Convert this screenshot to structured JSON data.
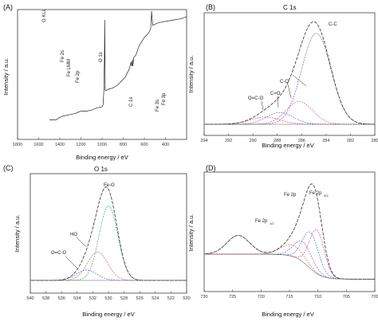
{
  "chart_data": [
    {
      "type": "line",
      "panel": "(A)",
      "title": "",
      "xlabel": "Binding energy / eV",
      "ylabel": "Intensity / a.u.",
      "xlim": [
        1800,
        200
      ],
      "x_ticks": [
        400,
        600,
        800,
        1000,
        1200,
        1400,
        1600,
        1800
      ],
      "series": [
        {
          "x": [
            200,
            260,
            320,
            380,
            440,
            480,
            500,
            520,
            528,
            531,
            534,
            540,
            560,
            600,
            640,
            660,
            680,
            700,
            710,
            712,
            715,
            720,
            725,
            740,
            760,
            780,
            800,
            850,
            900,
            940,
            960,
            970,
            973,
            975,
            978,
            982,
            990,
            1000,
            1050,
            1100,
            1150,
            1200,
            1230,
            1250,
            1300,
            1350,
            1390,
            1400,
            1410,
            1420,
            1440,
            1480,
            1500
          ],
          "values": [
            95,
            93,
            92,
            91,
            90,
            89,
            88,
            87,
            95,
            100,
            93,
            84,
            80,
            76,
            70,
            66,
            60,
            58,
            50,
            56,
            52,
            50,
            54,
            48,
            44,
            40,
            38,
            33,
            30,
            29,
            28,
            28,
            60,
            92,
            55,
            30,
            15,
            13,
            12,
            10,
            9,
            9,
            8,
            7,
            6,
            5,
            4,
            3,
            3,
            2,
            1,
            1,
            1
          ]
        }
      ],
      "annotations": [
        "O KLL",
        "Fe 2s",
        "Fe LMM",
        "Fe 2p",
        "O 1s",
        "C 1s",
        "Fe 3s",
        "Fe 3p"
      ]
    },
    {
      "type": "line",
      "panel": "(B)",
      "title": "C 1s",
      "xlabel": "Binding energy / eV",
      "ylabel": "Intensity / a.u.",
      "xlim": [
        294,
        280
      ],
      "x_ticks": [
        294,
        292,
        290,
        288,
        286,
        284,
        282,
        280
      ],
      "annotations": [
        "O=C-O",
        "C=O",
        "C-O",
        "C-C"
      ],
      "peaks": [
        {
          "name": "C-C",
          "center": 284.8,
          "height": 100,
          "width": 1.2
        },
        {
          "name": "C-O",
          "center": 286.2,
          "height": 25,
          "width": 1.1
        },
        {
          "name": "C=O",
          "center": 287.8,
          "height": 13,
          "width": 1.1
        },
        {
          "name": "O=C-O",
          "center": 289.0,
          "height": 8,
          "width": 1.2
        }
      ]
    },
    {
      "type": "line",
      "panel": "(C)",
      "title": "O 1s",
      "xlabel": "Binding energy / eV",
      "ylabel": "Intensity / a.u.",
      "xlim": [
        540,
        520
      ],
      "x_ticks": [
        540,
        538,
        536,
        534,
        532,
        530,
        528,
        526,
        524,
        522,
        520
      ],
      "annotations": [
        "O=C-O",
        "HO",
        "Fe-O"
      ],
      "peaks": [
        {
          "name": "Fe-O",
          "center": 530.0,
          "height": 100,
          "width": 1.2
        },
        {
          "name": "HO",
          "center": 531.4,
          "height": 38,
          "width": 1.3
        },
        {
          "name": "O=C-O",
          "center": 532.8,
          "height": 14,
          "width": 1.3
        }
      ]
    },
    {
      "type": "line",
      "panel": "(D)",
      "title": "",
      "xlabel": "Binding energy / eV",
      "ylabel": "Intensity / a.u.",
      "xlim": [
        730,
        700
      ],
      "x_ticks": [
        730,
        725,
        720,
        715,
        710,
        705,
        700
      ],
      "annotations": [
        "Fe 2p",
        "Fe 2p",
        "3/2",
        "Fe 2p",
        "1/2"
      ],
      "peaks": [
        {
          "name": "Fe 2p3/2 a",
          "center": 710.2,
          "height": 70,
          "width": 1.3
        },
        {
          "name": "Fe 2p3/2 b",
          "center": 711.3,
          "height": 58,
          "width": 1.4
        },
        {
          "name": "Fe 2p3/2 c",
          "center": 712.6,
          "height": 32,
          "width": 1.6
        },
        {
          "name": "Fe 2p3/2 d",
          "center": 714.5,
          "height": 18,
          "width": 2.0
        },
        {
          "name": "Fe 2p1/2",
          "center": 724.0,
          "height": 30,
          "width": 2.0
        }
      ],
      "background": {
        "high": 42,
        "low": 2
      }
    }
  ],
  "labels": {
    "a_letter": "(A)",
    "b_letter": "(B)",
    "c_letter": "(C)",
    "d_letter": "(D)",
    "a_xlabel": "Binding energy / eV",
    "a_ylabel": "Intensity / a.u.",
    "b_title": "C 1s",
    "b_xlabel": "Binding energy / eV",
    "b_ylabel": "Intensity / a.u.",
    "c_title": "O 1s",
    "c_xlabel": "Binding energy / eV",
    "c_ylabel": "Intensity / a.u.",
    "d_xlabel": "Binding energy / eV",
    "d_ylabel": "Intensity / a.u.",
    "a_ann": {
      "okll": "O KLL",
      "fe2s": "Fe 2s",
      "felmm": "Fe LMM",
      "fe2p": "Fe 2p",
      "o1s": "O 1s",
      "c1s": "C 1s",
      "fe3s": "Fe 3s",
      "fe3p": "Fe 3p"
    },
    "b_ann": {
      "oco": "O=C-O",
      "co_double": "C=O",
      "co": "C-O",
      "cc": "C-C"
    },
    "c_ann": {
      "oco": "O=C-O",
      "ho": "HO",
      "feo": "Fe-O"
    },
    "d_ann": {
      "fe2p": "Fe 2p",
      "fe2p32": "Fe 2p",
      "sub32": "3/2",
      "fe2p12": "Fe 2p",
      "sub12": "1/2"
    }
  },
  "colors": {
    "envelope": "#222222",
    "c_cc": "#7a3fa0",
    "c_co": "#d33a8a",
    "c_cod": "#3a5fc8",
    "c_oco": "#c83a3a",
    "o_feo": "#1e9e5a",
    "o_ho": "#d9454f",
    "o_oco": "#3a50c8",
    "fe_a": "#c4306a",
    "fe_b": "#2e5fd0",
    "fe_c": "#8a3aa8",
    "fe_d": "#d05a3a",
    "fe_e": "#3a9a5a"
  }
}
